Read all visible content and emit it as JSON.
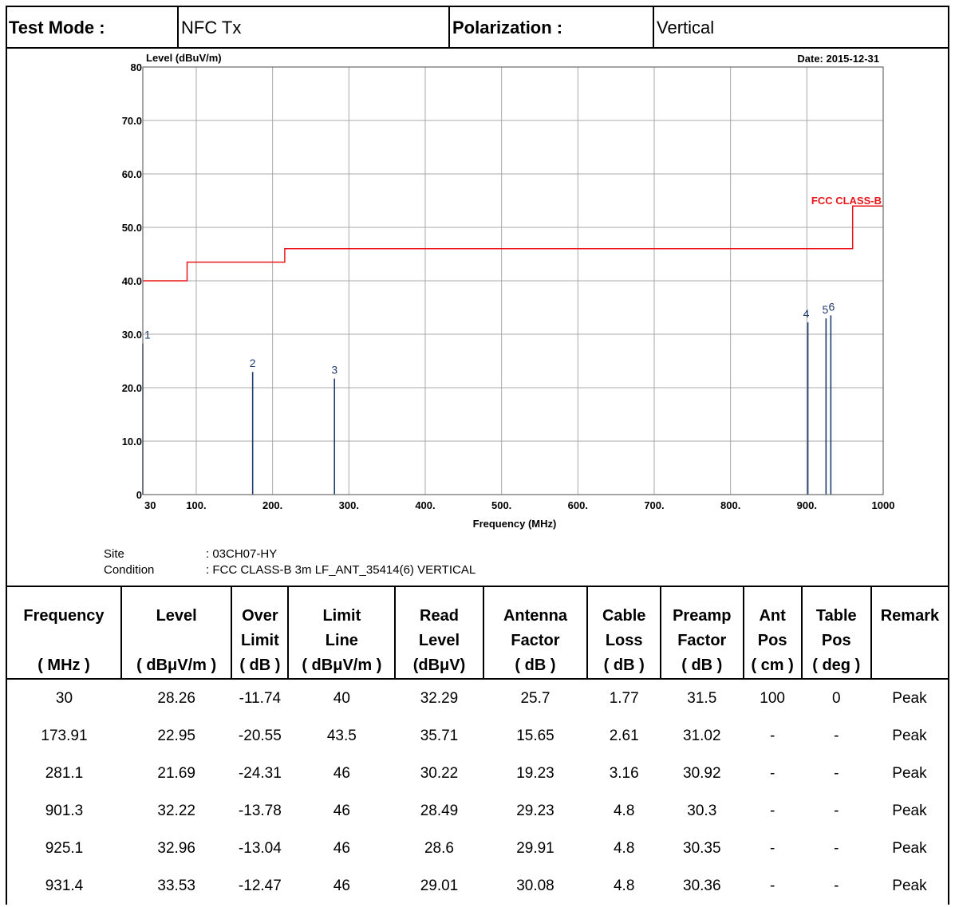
{
  "header": {
    "test_mode_label": "Test Mode :",
    "test_mode_value": "NFC Tx",
    "polarization_label": "Polarization :",
    "polarization_value": "Vertical"
  },
  "chart_data": {
    "type": "line",
    "ylabel": "Level (dBuV/m)",
    "xlabel": "Frequency (MHz)",
    "date_label": "Date: 2015-12-31",
    "xlim": [
      30,
      1000
    ],
    "ylim": [
      0,
      80
    ],
    "grid": true,
    "y_ticks": [
      {
        "value": 0,
        "label": "0"
      },
      {
        "value": 10,
        "label": "10.0"
      },
      {
        "value": 20,
        "label": "20.0"
      },
      {
        "value": 30,
        "label": "30.0"
      },
      {
        "value": 40,
        "label": "40.0"
      },
      {
        "value": 50,
        "label": "50.0"
      },
      {
        "value": 60,
        "label": "60.0"
      },
      {
        "value": 70,
        "label": "70.0"
      },
      {
        "value": 80,
        "label": "80"
      }
    ],
    "x_ticks": [
      {
        "value": 30,
        "label": "30"
      },
      {
        "value": 100,
        "label": "100."
      },
      {
        "value": 200,
        "label": "200."
      },
      {
        "value": 300,
        "label": "300."
      },
      {
        "value": 400,
        "label": "400."
      },
      {
        "value": 500,
        "label": "500."
      },
      {
        "value": 600,
        "label": "600."
      },
      {
        "value": 700,
        "label": "700."
      },
      {
        "value": 800,
        "label": "800."
      },
      {
        "value": 900,
        "label": "900."
      },
      {
        "value": 1000,
        "label": "1000"
      }
    ],
    "limit_line": {
      "name": "FCC CLASS-B",
      "color": "#e8161a",
      "points": [
        [
          30,
          40
        ],
        [
          88,
          40
        ],
        [
          88,
          43.5
        ],
        [
          216,
          43.5
        ],
        [
          216,
          46
        ],
        [
          960,
          46
        ],
        [
          960,
          54
        ],
        [
          1000,
          54
        ]
      ]
    },
    "peaks": {
      "color": "#1f3c6e",
      "points": [
        {
          "label": "1",
          "x": 30,
          "y": 28.26
        },
        {
          "label": "2",
          "x": 173.91,
          "y": 22.95
        },
        {
          "label": "3",
          "x": 281.1,
          "y": 21.69
        },
        {
          "label": "4",
          "x": 901.3,
          "y": 32.22
        },
        {
          "label": "5",
          "x": 925.1,
          "y": 32.96
        },
        {
          "label": "6",
          "x": 931.4,
          "y": 33.53
        }
      ]
    }
  },
  "info": {
    "site_label": "Site",
    "site_value": ": 03CH07-HY",
    "condition_label": "Condition",
    "condition_value": ": FCC CLASS-B 3m LF_ANT_35414(6) VERTICAL"
  },
  "table": {
    "columns": [
      {
        "l1": "Frequency",
        "l2": "",
        "l3": "( MHz )"
      },
      {
        "l1": "Level",
        "l2": "",
        "l3": "( dBμV/m )"
      },
      {
        "l1": "Over",
        "l2": "Limit",
        "l3": "( dB )"
      },
      {
        "l1": "Limit",
        "l2": "Line",
        "l3": "( dBμV/m )"
      },
      {
        "l1": "Read",
        "l2": "Level",
        "l3": "(dBμV)"
      },
      {
        "l1": "Antenna",
        "l2": "Factor",
        "l3": "( dB )"
      },
      {
        "l1": "Cable",
        "l2": "Loss",
        "l3": "( dB )"
      },
      {
        "l1": "Preamp",
        "l2": "Factor",
        "l3": "( dB )"
      },
      {
        "l1": "Ant",
        "l2": "Pos",
        "l3": "( cm )"
      },
      {
        "l1": "Table",
        "l2": "Pos",
        "l3": "( deg )"
      },
      {
        "l1": "Remark",
        "l2": "",
        "l3": ""
      }
    ],
    "rows": [
      [
        "30",
        "28.26",
        "-11.74",
        "40",
        "32.29",
        "25.7",
        "1.77",
        "31.5",
        "100",
        "0",
        "Peak"
      ],
      [
        "173.91",
        "22.95",
        "-20.55",
        "43.5",
        "35.71",
        "15.65",
        "2.61",
        "31.02",
        "-",
        "-",
        "Peak"
      ],
      [
        "281.1",
        "21.69",
        "-24.31",
        "46",
        "30.22",
        "19.23",
        "3.16",
        "30.92",
        "-",
        "-",
        "Peak"
      ],
      [
        "901.3",
        "32.22",
        "-13.78",
        "46",
        "28.49",
        "29.23",
        "4.8",
        "30.3",
        "-",
        "-",
        "Peak"
      ],
      [
        "925.1",
        "32.96",
        "-13.04",
        "46",
        "28.6",
        "29.91",
        "4.8",
        "30.35",
        "-",
        "-",
        "Peak"
      ],
      [
        "931.4",
        "33.53",
        "-12.47",
        "46",
        "29.01",
        "30.08",
        "4.8",
        "30.36",
        "-",
        "-",
        "Peak"
      ]
    ]
  }
}
